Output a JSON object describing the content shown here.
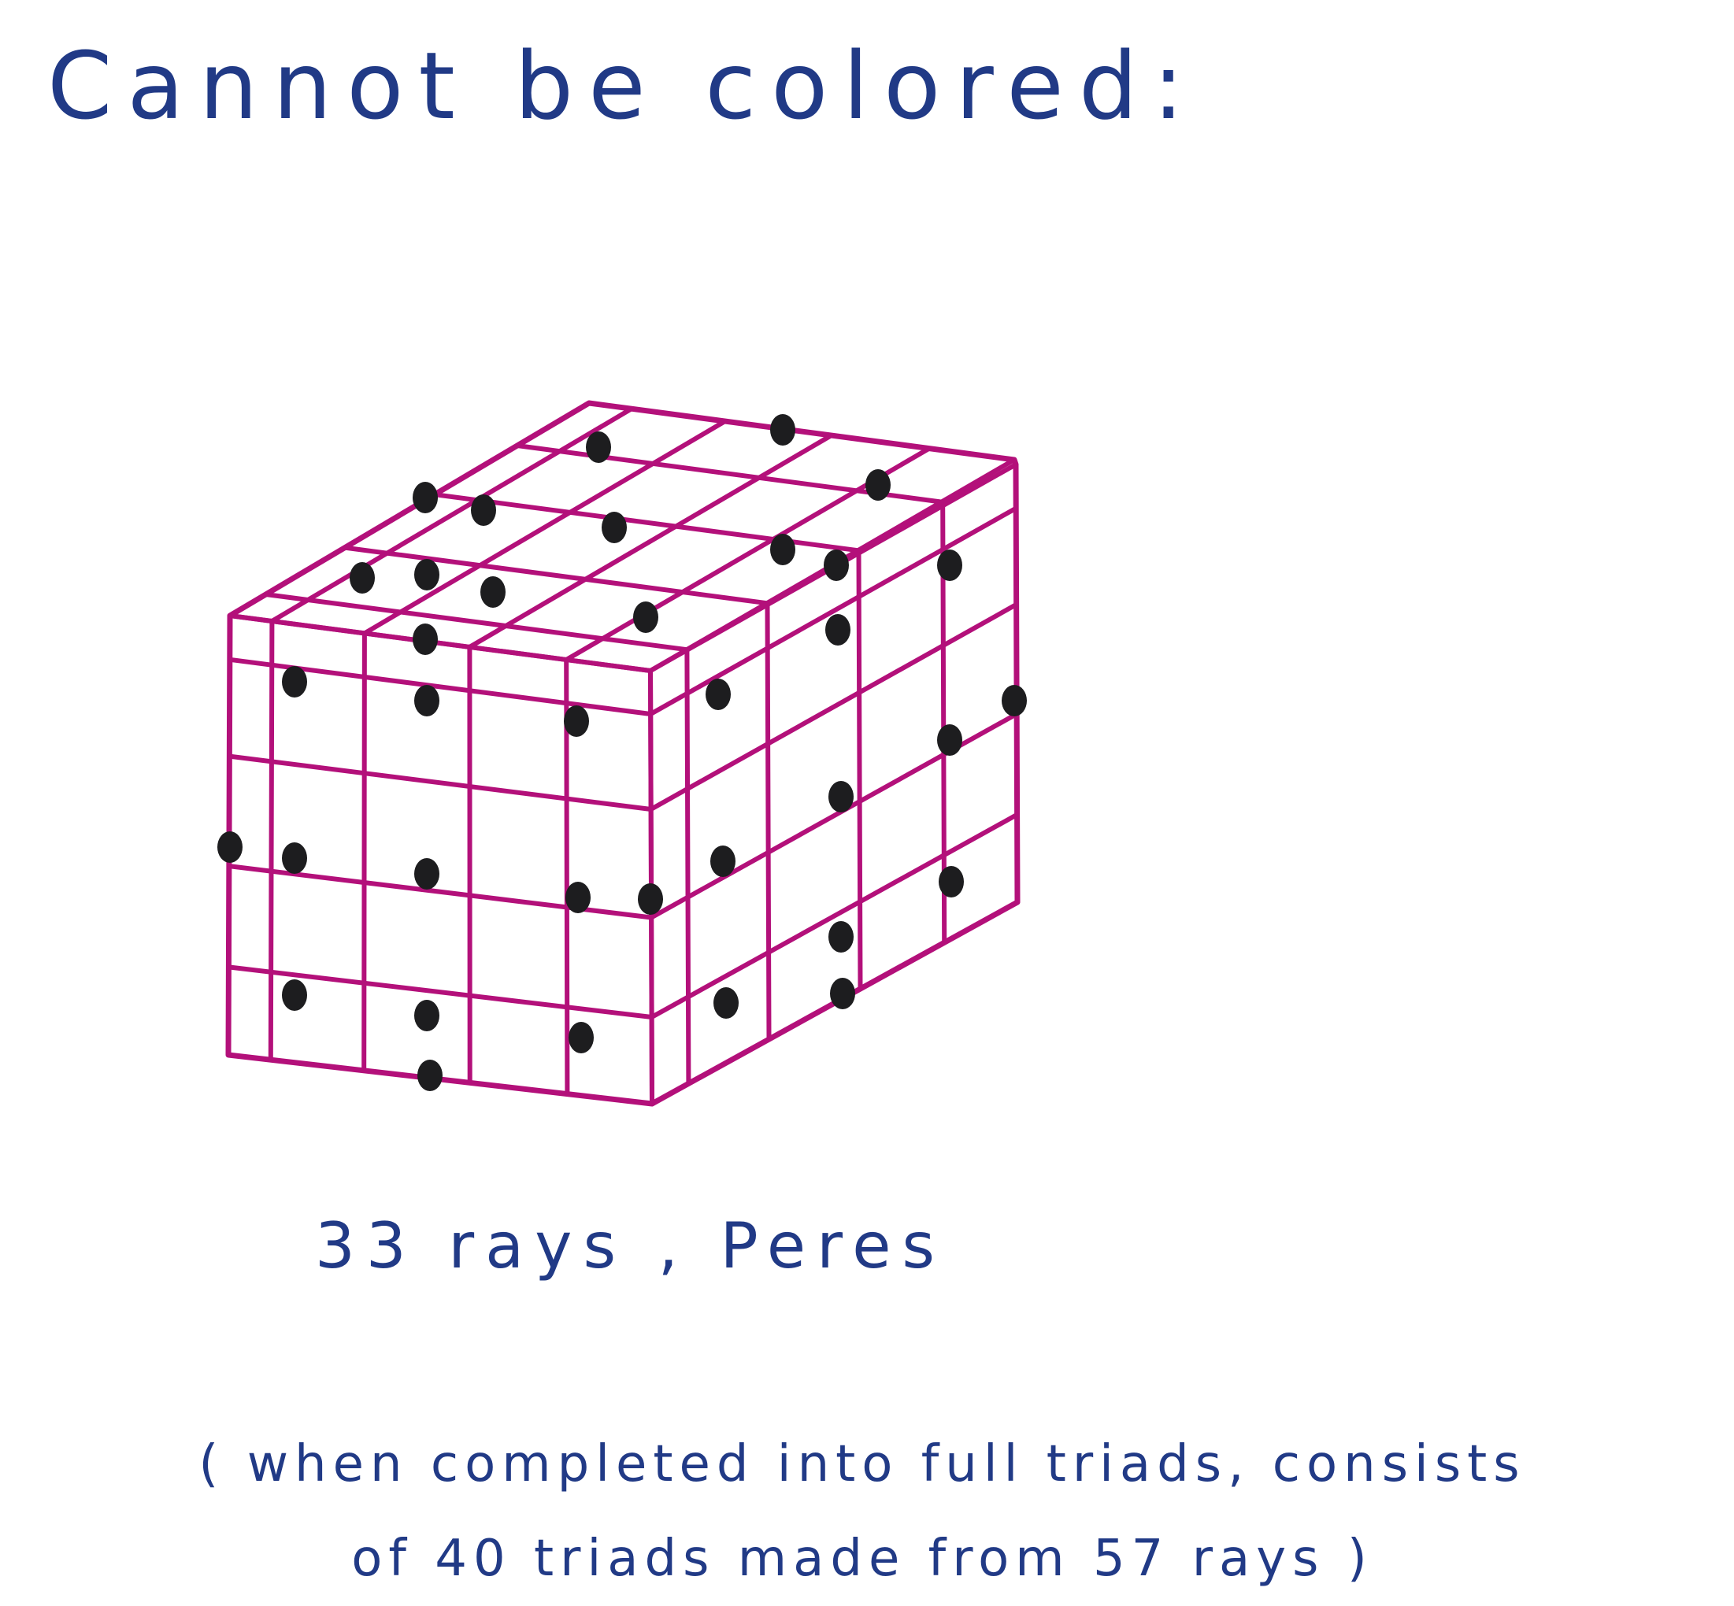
{
  "colors": {
    "ink": "#213a86",
    "edge": "#b3107a",
    "node": "#1d1d1f",
    "background": "#ffffff"
  },
  "title": "Cannot be colored:",
  "diagram": {
    "caption": "33 rays , Peres"
  },
  "note": {
    "line1": "( when completed into full triads, consists",
    "line2": "of  40 triads made from 57 rays )"
  }
}
